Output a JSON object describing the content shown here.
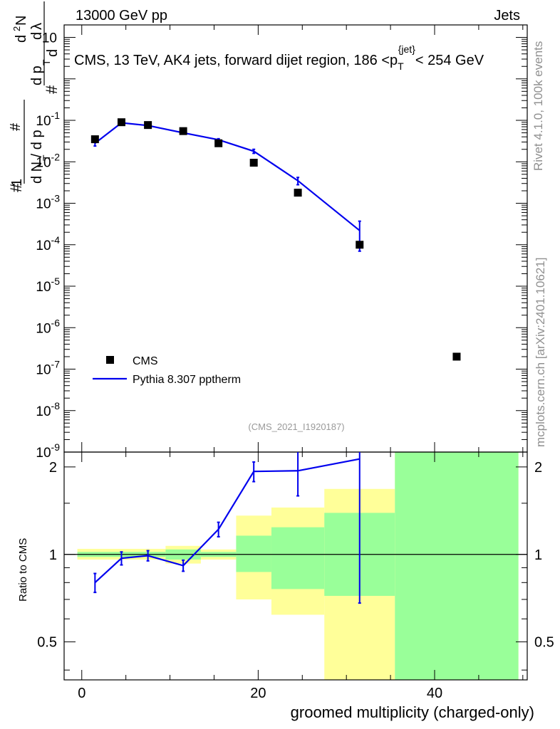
{
  "header": {
    "left": "13000 GeV pp",
    "right": "Jets"
  },
  "side_labels": {
    "top": "Rivet 4.1.0,  100k events",
    "bottom": "mcplots.cern.ch [arXiv:2401.10621]"
  },
  "chart_data": {
    "type": "line",
    "title": "CMS, 13 TeV, AK4 jets, forward dijet region, 186 <p_T^{jet}< 254 GeV",
    "title_parts": {
      "pre": "CMS, 13 TeV, AK4 jets, forward dijet region, 186 <p",
      "sub": "T",
      "sup": "{jet}",
      "post": "< 254 GeV"
    },
    "analysis_id": "(CMS_2021_I1920187)",
    "xlabel": "groomed multiplicity (charged-only)",
    "ylabel": "1/N dN/dp_T d^2N/dp_T dλ",
    "ratio_ylabel": "Ratio to CMS",
    "xlim": [
      -2,
      50.5
    ],
    "ylim": [
      1e-09,
      20
    ],
    "ratio_ylim": [
      0.37,
      2.25
    ],
    "x_ticks": [
      0,
      20,
      40
    ],
    "main_tick_exps": [
      -9,
      -8,
      -7,
      -6,
      -5,
      -4,
      -3,
      -2,
      -1
    ],
    "main_top_tick": "10",
    "ratio_ticks": [
      0.5,
      1,
      2
    ],
    "legend": [
      "CMS",
      "Pythia 8.307 pptherm"
    ],
    "legend_position": "middle-left",
    "series": [
      {
        "name": "CMS",
        "marker": "square",
        "color": "#000000",
        "x": [
          1.5,
          4.5,
          7.5,
          11.5,
          15.5,
          19.5,
          24.5,
          31.5,
          42.5
        ],
        "y": [
          0.035,
          0.09,
          0.077,
          0.055,
          0.028,
          0.0095,
          0.0018,
          0.0001,
          2e-07
        ]
      },
      {
        "name": "Pythia 8.307 pptherm",
        "marker": "line",
        "color": "#0000ee",
        "x": [
          1.5,
          4.5,
          7.5,
          11.5,
          15.5,
          19.5,
          24.5,
          31.5
        ],
        "y": [
          0.028,
          0.087,
          0.075,
          0.05,
          0.034,
          0.018,
          0.0035,
          0.00022
        ],
        "yerr": [
          0.004,
          0.006,
          0.004,
          0.003,
          0.002,
          0.002,
          0.0007,
          0.00015
        ]
      }
    ],
    "ratio": {
      "x": [
        1.5,
        4.5,
        7.5,
        11.5,
        15.5,
        19.5,
        24.5,
        31.5
      ],
      "y": [
        0.8,
        0.97,
        0.99,
        0.915,
        1.22,
        1.93,
        1.94,
        2.13
      ],
      "err_lo": [
        0.06,
        0.05,
        0.04,
        0.04,
        0.07,
        0.15,
        0.35,
        1.45
      ],
      "err_hi": [
        0.06,
        0.05,
        0.04,
        0.04,
        0.07,
        0.15,
        0.35,
        1.0
      ]
    },
    "bands": [
      {
        "x0": -0.5,
        "x1": 9.5,
        "y_lo": 0.96,
        "y_hi": 1.045,
        "g_lo": 0.98,
        "g_hi": 1.02
      },
      {
        "x0": 9.5,
        "x1": 13.5,
        "y_lo": 0.93,
        "y_hi": 1.07,
        "g_lo": 0.96,
        "g_hi": 1.04
      },
      {
        "x0": 13.5,
        "x1": 17.5,
        "y_lo": 0.96,
        "y_hi": 1.04,
        "g_lo": 0.98,
        "g_hi": 1.02
      },
      {
        "x0": 17.5,
        "x1": 21.5,
        "y_lo": 0.7,
        "y_hi": 1.36,
        "g_lo": 0.87,
        "g_hi": 1.16
      },
      {
        "x0": 21.5,
        "x1": 27.5,
        "y_lo": 0.62,
        "y_hi": 1.45,
        "g_lo": 0.76,
        "g_hi": 1.24
      },
      {
        "x0": 27.5,
        "x1": 35.5,
        "y_lo": 0.37,
        "y_hi": 1.68,
        "g_lo": 0.72,
        "g_hi": 1.39
      },
      {
        "x0": 35.5,
        "x1": 49.5,
        "y_lo": 0.37,
        "y_hi": 2.25,
        "g_lo": 0.37,
        "g_hi": 2.25
      }
    ],
    "colors": {
      "band_outer": "#ffff99",
      "band_inner": "#99ff99",
      "mc": "#0000ee",
      "data": "#000000"
    }
  }
}
